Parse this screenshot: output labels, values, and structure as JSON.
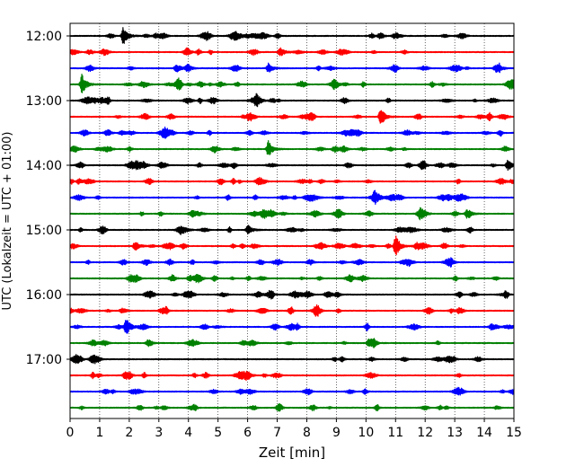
{
  "chart_data": {
    "type": "line",
    "title": "",
    "xlabel": "Zeit  [min]",
    "ylabel": "UTC (Lokalzeit = UTC + 01:00)",
    "xlim": [
      0,
      15
    ],
    "x_ticks": [
      "0",
      "1",
      "2",
      "3",
      "4",
      "5",
      "6",
      "7",
      "8",
      "9",
      "10",
      "11",
      "12",
      "13",
      "14",
      "15"
    ],
    "y_tick_labels": [
      "12:00",
      "13:00",
      "14:00",
      "15:00",
      "16:00",
      "17:00"
    ],
    "grid": "vertical dotted lines at each minute",
    "row_interval_minutes": 15,
    "row_start_times": [
      "12:00",
      "12:15",
      "12:30",
      "12:45",
      "13:00",
      "13:15",
      "13:30",
      "13:45",
      "14:00",
      "14:15",
      "14:30",
      "14:45",
      "15:00",
      "15:15",
      "15:30",
      "15:45",
      "16:00",
      "16:15",
      "16:30",
      "16:45",
      "17:00",
      "17:15",
      "17:30",
      "17:45"
    ],
    "color_cycle": [
      "#000000",
      "#ff0000",
      "#0000ff",
      "#008000"
    ],
    "events": [
      {
        "row": 0,
        "x": 1.8,
        "amp": 1.0
      },
      {
        "row": 1,
        "x": 7.1,
        "amp": 0.5
      },
      {
        "row": 2,
        "x": 6.7,
        "amp": 0.55
      },
      {
        "row": 3,
        "x": 0.4,
        "amp": 1.1
      },
      {
        "row": 4,
        "x": 6.3,
        "amp": 0.5
      },
      {
        "row": 5,
        "x": 10.5,
        "amp": 1.0
      },
      {
        "row": 7,
        "x": 6.7,
        "amp": 0.85
      },
      {
        "row": 8,
        "x": 14.8,
        "amp": 0.55
      },
      {
        "row": 10,
        "x": 10.3,
        "amp": 0.45
      },
      {
        "row": 11,
        "x": 13.4,
        "amp": 0.5
      },
      {
        "row": 12,
        "x": 6.0,
        "amp": 0.5
      },
      {
        "row": 13,
        "x": 11.0,
        "amp": 1.15
      },
      {
        "row": 13,
        "x": 2.2,
        "amp": 0.55
      },
      {
        "row": 18,
        "x": 1.9,
        "amp": 0.95
      },
      {
        "row": 19,
        "x": 10.1,
        "amp": 0.4
      }
    ]
  }
}
